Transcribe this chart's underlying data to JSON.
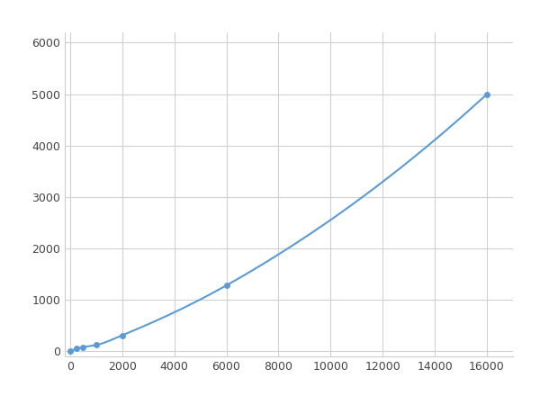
{
  "x": [
    0,
    250,
    500,
    1000,
    2000,
    6000,
    16000
  ],
  "y": [
    0,
    50,
    80,
    120,
    310,
    1280,
    5000
  ],
  "line_color": "#5b9bd5",
  "marker_color": "#5b9bd5",
  "marker_style": "o",
  "marker_size": 5,
  "linewidth": 1.5,
  "xlim": [
    -200,
    17000
  ],
  "ylim": [
    -100,
    6200
  ],
  "xticks": [
    0,
    2000,
    4000,
    6000,
    8000,
    10000,
    12000,
    14000,
    16000
  ],
  "yticks": [
    0,
    1000,
    2000,
    3000,
    4000,
    5000,
    6000
  ],
  "grid_color": "#d0d0d0",
  "background_color": "#ffffff",
  "figure_bg": "#ffffff"
}
